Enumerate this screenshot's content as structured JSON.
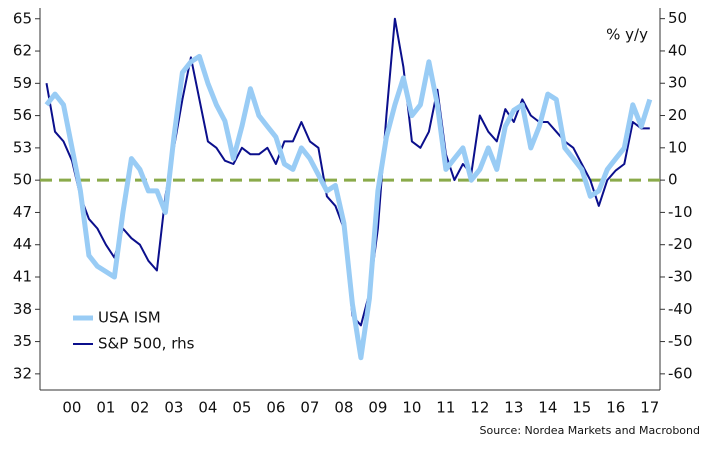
{
  "chart_data": {
    "type": "line",
    "annotation": "% y/y",
    "source": "Source: Nordea Markets and Macrobond",
    "x": [
      1999.75,
      2000.0,
      2000.25,
      2000.5,
      2000.75,
      2001.0,
      2001.25,
      2001.5,
      2001.75,
      2002.0,
      2002.25,
      2002.5,
      2002.75,
      2003.0,
      2003.25,
      2003.5,
      2003.75,
      2004.0,
      2004.25,
      2004.5,
      2004.75,
      2005.0,
      2005.25,
      2005.5,
      2005.75,
      2006.0,
      2006.25,
      2006.5,
      2006.75,
      2007.0,
      2007.25,
      2007.5,
      2007.75,
      2008.0,
      2008.25,
      2008.5,
      2008.75,
      2009.0,
      2009.25,
      2009.5,
      2009.75,
      2010.0,
      2010.25,
      2010.5,
      2010.75,
      2011.0,
      2011.25,
      2011.5,
      2011.75,
      2012.0,
      2012.25,
      2012.5,
      2012.75,
      2013.0,
      2013.25,
      2013.5,
      2013.75,
      2014.0,
      2014.25,
      2014.5,
      2014.75,
      2015.0,
      2015.25,
      2015.5,
      2015.75,
      2016.0,
      2016.25,
      2016.5,
      2016.75,
      2017.0,
      2017.25,
      2017.5
    ],
    "series": [
      {
        "name": "USA ISM",
        "color": "#99ccf5",
        "width": 5,
        "axis": "y",
        "values": [
          57,
          58,
          57,
          53,
          49,
          43,
          42,
          41.5,
          41,
          47,
          52,
          51,
          49,
          49,
          47,
          54,
          60,
          61,
          61.5,
          59,
          57,
          55.5,
          52,
          55,
          58.5,
          56,
          55,
          54,
          51.5,
          51,
          53,
          52,
          50.5,
          49,
          49.5,
          46,
          38.5,
          33.5,
          39,
          49,
          54,
          57,
          59.5,
          56,
          57,
          61,
          57,
          51,
          52,
          53,
          50,
          51,
          53,
          51,
          55,
          56.5,
          57,
          53,
          55,
          58,
          57.5,
          53,
          52,
          51,
          48.5,
          49,
          51,
          52,
          53,
          57,
          55,
          57.5
        ]
      },
      {
        "name": "S&P 500, rhs",
        "color": "#0b0f8c",
        "width": 2,
        "axis": "y2",
        "values": [
          30,
          15,
          12,
          6,
          -5,
          -12,
          -15,
          -20,
          -24,
          -15,
          -18,
          -20,
          -25,
          -28,
          -5,
          10,
          25,
          38,
          25,
          12,
          10,
          6,
          5,
          10,
          8,
          8,
          10,
          5,
          12,
          12,
          18,
          12,
          10,
          -5,
          -8,
          -15,
          -42,
          -45,
          -35,
          -15,
          20,
          50,
          35,
          12,
          10,
          15,
          28,
          8,
          0,
          5,
          2,
          20,
          15,
          12,
          22,
          18,
          25,
          20,
          18,
          18,
          15,
          12,
          10,
          5,
          0,
          -8,
          0,
          3,
          5,
          18,
          16,
          16
        ]
      }
    ],
    "xlim": [
      1999.56,
      2017.8
    ],
    "xticks": [
      {
        "value": 2000.5,
        "label": "00"
      },
      {
        "value": 2001.5,
        "label": "01"
      },
      {
        "value": 2002.5,
        "label": "02"
      },
      {
        "value": 2003.5,
        "label": "03"
      },
      {
        "value": 2004.5,
        "label": "04"
      },
      {
        "value": 2005.5,
        "label": "05"
      },
      {
        "value": 2006.5,
        "label": "06"
      },
      {
        "value": 2007.5,
        "label": "07"
      },
      {
        "value": 2008.5,
        "label": "08"
      },
      {
        "value": 2009.5,
        "label": "09"
      },
      {
        "value": 2010.5,
        "label": "10"
      },
      {
        "value": 2011.5,
        "label": "11"
      },
      {
        "value": 2012.5,
        "label": "12"
      },
      {
        "value": 2013.5,
        "label": "13"
      },
      {
        "value": 2014.5,
        "label": "14"
      },
      {
        "value": 2015.5,
        "label": "15"
      },
      {
        "value": 2016.5,
        "label": "16"
      },
      {
        "value": 2017.5,
        "label": "17"
      }
    ],
    "ylim": [
      30.5,
      66
    ],
    "yticks": [
      32,
      35,
      38,
      41,
      44,
      47,
      50,
      53,
      56,
      59,
      62,
      65
    ],
    "y2lim": [
      -65,
      53.3
    ],
    "y2ticks": [
      -60,
      -50,
      -40,
      -30,
      -20,
      -10,
      0,
      10,
      20,
      30,
      40,
      50
    ],
    "reference_line": {
      "value": 50,
      "color": "#8aaa4a"
    },
    "legend": "lower-left"
  }
}
